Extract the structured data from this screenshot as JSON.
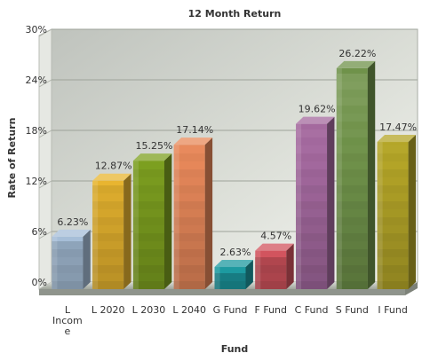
{
  "chart_data": {
    "type": "bar",
    "title": "12 Month Return",
    "xlabel": "Fund",
    "ylabel": "Rate of Return",
    "ylim": [
      0,
      30
    ],
    "yticks": [
      0,
      6,
      12,
      18,
      24,
      30
    ],
    "ytick_labels": [
      "0%",
      "6%",
      "12%",
      "18%",
      "24%",
      "30%"
    ],
    "categories": [
      "L Income",
      "L 2020",
      "L 2030",
      "L 2040",
      "G Fund",
      "F Fund",
      "C Fund",
      "S Fund",
      "I Fund"
    ],
    "category_label_lines": [
      [
        "L",
        "Incom",
        "e"
      ],
      [
        "L 2020"
      ],
      [
        "L 2030"
      ],
      [
        "L 2040"
      ],
      [
        "G Fund"
      ],
      [
        "F Fund"
      ],
      [
        "C Fund"
      ],
      [
        "S Fund"
      ],
      [
        "I Fund"
      ]
    ],
    "values": [
      6.23,
      12.87,
      15.25,
      17.14,
      2.63,
      4.57,
      19.62,
      26.22,
      17.47
    ],
    "value_labels": [
      "6.23%",
      "12.87%",
      "15.25%",
      "17.14%",
      "2.63%",
      "4.57%",
      "19.62%",
      "26.22%",
      "17.47%"
    ],
    "colors": [
      "#a6bed8",
      "#e8b530",
      "#7ea020",
      "#e8895a",
      "#1d9aa0",
      "#d2545e",
      "#a4699e",
      "#6f924a",
      "#b4a628"
    ],
    "grid": true,
    "legend": "none",
    "style": "3d"
  }
}
